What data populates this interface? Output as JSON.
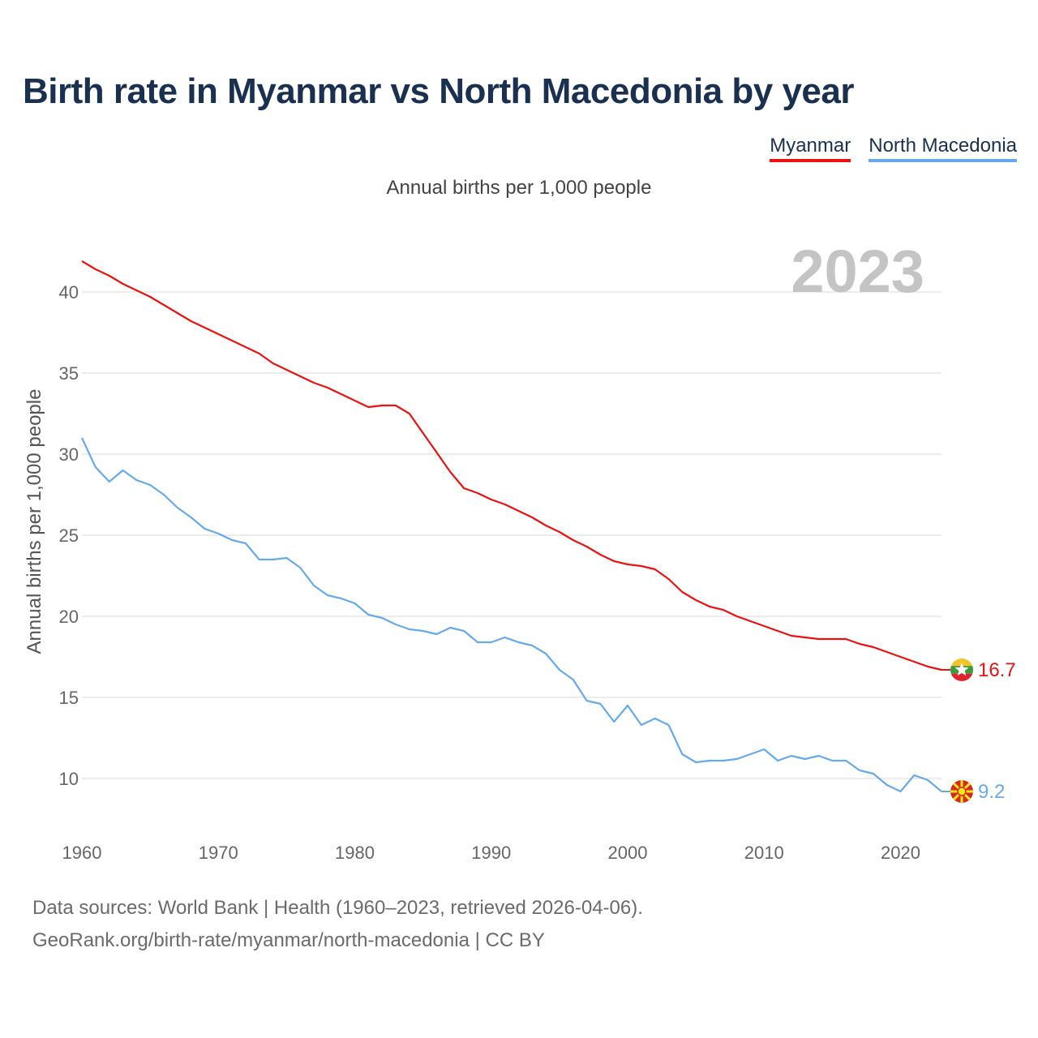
{
  "title": "Birth rate in Myanmar vs North Macedonia by year",
  "subtitle": "Annual births per 1,000 people",
  "legend": [
    {
      "label": "Myanmar",
      "color": "#ee1111"
    },
    {
      "label": "North Macedonia",
      "color": "#66aaee"
    }
  ],
  "year_label": "2023",
  "footer": {
    "sources": "Data sources: World Bank | Health (1960–2023, retrieved 2026-04-06).",
    "link": "GeoRank.org/birth-rate/myanmar/north-macedonia | CC BY"
  },
  "chart_data": {
    "type": "line",
    "title": "Birth rate in Myanmar vs North Macedonia by year",
    "subtitle": "Annual births per 1,000 people",
    "xlabel": "",
    "ylabel": "Annual births per 1,000 people",
    "xlim": [
      1960,
      2023
    ],
    "ylim": [
      7,
      42.5
    ],
    "x_ticks": [
      1960,
      1970,
      1980,
      1990,
      2000,
      2010,
      2020
    ],
    "y_ticks": [
      10,
      15,
      20,
      25,
      30,
      35,
      40
    ],
    "grid": true,
    "legend_position": "top-right",
    "x": [
      1960,
      1961,
      1962,
      1963,
      1964,
      1965,
      1966,
      1967,
      1968,
      1969,
      1970,
      1971,
      1972,
      1973,
      1974,
      1975,
      1976,
      1977,
      1978,
      1979,
      1980,
      1981,
      1982,
      1983,
      1984,
      1985,
      1986,
      1987,
      1988,
      1989,
      1990,
      1991,
      1992,
      1993,
      1994,
      1995,
      1996,
      1997,
      1998,
      1999,
      2000,
      2001,
      2002,
      2003,
      2004,
      2005,
      2006,
      2007,
      2008,
      2009,
      2010,
      2011,
      2012,
      2013,
      2014,
      2015,
      2016,
      2017,
      2018,
      2019,
      2020,
      2021,
      2022,
      2023
    ],
    "series": [
      {
        "name": "Myanmar",
        "color": "#ee1111",
        "end_label": "16.7",
        "values": [
          41.9,
          41.4,
          41.0,
          40.5,
          40.1,
          39.7,
          39.2,
          38.7,
          38.2,
          37.8,
          37.4,
          37.0,
          36.6,
          36.2,
          35.6,
          35.2,
          34.8,
          34.4,
          34.1,
          33.7,
          33.3,
          32.9,
          33.0,
          33.0,
          32.5,
          31.3,
          30.1,
          28.9,
          27.9,
          27.6,
          27.2,
          26.9,
          26.5,
          26.1,
          25.6,
          25.2,
          24.7,
          24.3,
          23.8,
          23.4,
          23.2,
          23.1,
          22.9,
          22.3,
          21.5,
          21.0,
          20.6,
          20.4,
          20.0,
          19.7,
          19.4,
          19.1,
          18.8,
          18.7,
          18.6,
          18.6,
          18.6,
          18.3,
          18.1,
          17.8,
          17.5,
          17.2,
          16.9,
          16.7
        ]
      },
      {
        "name": "North Macedonia",
        "color": "#66aaee",
        "end_label": "9.2",
        "values": [
          31.0,
          29.2,
          28.3,
          29.0,
          28.4,
          28.1,
          27.5,
          26.7,
          26.1,
          25.4,
          25.1,
          24.7,
          24.5,
          23.5,
          23.5,
          23.6,
          23.0,
          21.9,
          21.3,
          21.1,
          20.8,
          20.1,
          19.9,
          19.5,
          19.2,
          19.1,
          18.9,
          19.3,
          19.1,
          18.4,
          18.4,
          18.7,
          18.4,
          18.2,
          17.7,
          16.7,
          16.1,
          14.8,
          14.6,
          13.5,
          14.5,
          13.3,
          13.7,
          13.3,
          11.5,
          11.0,
          11.1,
          11.1,
          11.2,
          11.5,
          11.8,
          11.1,
          11.4,
          11.2,
          11.4,
          11.1,
          11.1,
          10.5,
          10.3,
          9.6,
          9.2,
          10.2,
          9.9,
          9.2
        ]
      }
    ]
  }
}
